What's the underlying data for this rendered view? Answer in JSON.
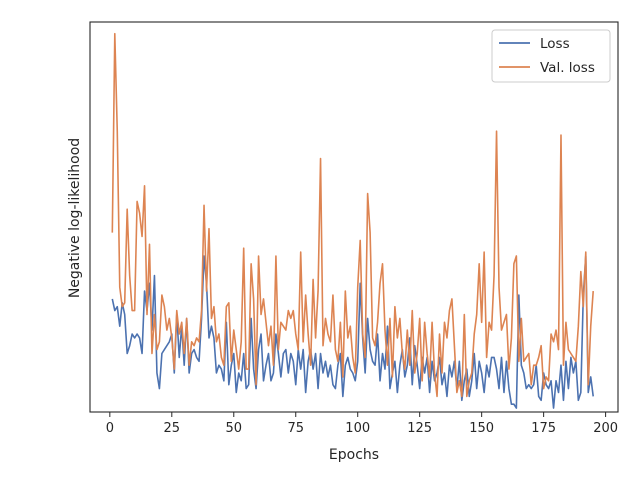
{
  "chart_data": {
    "type": "line",
    "xlabel": "Epochs",
    "ylabel": "Negative log-likelihood",
    "xlim": [
      -8,
      205
    ],
    "ylim": [
      0,
      100
    ],
    "xticks": [
      0,
      25,
      50,
      75,
      100,
      125,
      150,
      175,
      200
    ],
    "y_tick_labels_shown": false,
    "grid": false,
    "legend": {
      "placement": "top-right"
    },
    "x": [
      1,
      2,
      3,
      4,
      5,
      6,
      7,
      8,
      9,
      10,
      11,
      12,
      13,
      14,
      15,
      16,
      17,
      18,
      19,
      20,
      21,
      22,
      23,
      24,
      25,
      26,
      27,
      28,
      29,
      30,
      31,
      32,
      33,
      34,
      35,
      36,
      37,
      38,
      39,
      40,
      41,
      42,
      43,
      44,
      45,
      46,
      47,
      48,
      49,
      50,
      51,
      52,
      53,
      54,
      55,
      56,
      57,
      58,
      59,
      60,
      61,
      62,
      63,
      64,
      65,
      66,
      67,
      68,
      69,
      70,
      71,
      72,
      73,
      74,
      75,
      76,
      77,
      78,
      79,
      80,
      81,
      82,
      83,
      84,
      85,
      86,
      87,
      88,
      89,
      90,
      91,
      92,
      93,
      94,
      95,
      96,
      97,
      98,
      99,
      100,
      101,
      102,
      103,
      104,
      105,
      106,
      107,
      108,
      109,
      110,
      111,
      112,
      113,
      114,
      115,
      116,
      117,
      118,
      119,
      120,
      121,
      122,
      123,
      124,
      125,
      126,
      127,
      128,
      129,
      130,
      131,
      132,
      133,
      134,
      135,
      136,
      137,
      138,
      139,
      140,
      141,
      142,
      143,
      144,
      145,
      146,
      147,
      148,
      149,
      150,
      151,
      152,
      153,
      154,
      155,
      156,
      157,
      158,
      159,
      160,
      161,
      162,
      163,
      164,
      165,
      166,
      167,
      168,
      169,
      170,
      171,
      172,
      173,
      174,
      175,
      176,
      177,
      178,
      179,
      180,
      181,
      182,
      183,
      184,
      185,
      186,
      187,
      188,
      189,
      190,
      191,
      192,
      193,
      194,
      195
    ],
    "series": [
      {
        "name": "Loss",
        "color": "#4c72b0",
        "values": [
          29,
          26,
          27,
          22,
          28,
          25,
          15,
          17,
          20,
          19,
          20,
          19,
          15,
          31,
          26,
          33,
          21,
          35,
          10,
          6,
          15,
          16,
          17,
          18,
          20,
          10,
          25,
          14,
          22,
          12,
          24,
          10,
          15,
          16,
          14,
          13,
          24,
          40,
          33,
          19,
          22,
          19,
          10,
          12,
          11,
          8,
          23,
          7,
          12,
          15,
          5,
          10,
          8,
          15,
          6,
          7,
          24,
          11,
          6,
          16,
          20,
          8,
          12,
          15,
          8,
          10,
          20,
          15,
          9,
          15,
          16,
          10,
          15,
          13,
          7,
          16,
          11,
          16,
          5,
          13,
          16,
          11,
          15,
          6,
          15,
          10,
          13,
          9,
          12,
          7,
          6,
          12,
          15,
          4,
          12,
          14,
          11,
          10,
          8,
          13,
          33,
          19,
          10,
          24,
          16,
          13,
          12,
          20,
          8,
          15,
          11,
          22,
          6,
          10,
          13,
          5,
          12,
          16,
          9,
          12,
          19,
          7,
          17,
          12,
          6,
          14,
          10,
          14,
          5,
          13,
          8,
          10,
          14,
          7,
          10,
          4,
          12,
          9,
          13,
          6,
          13,
          3,
          8,
          11,
          4,
          8,
          15,
          6,
          13,
          10,
          5,
          12,
          9,
          14,
          14,
          11,
          6,
          14,
          5,
          13,
          6,
          2,
          2,
          1,
          30,
          12,
          10,
          6,
          7,
          6,
          7,
          12,
          4,
          3,
          10,
          7,
          6,
          8,
          1,
          8,
          5,
          12,
          3,
          13,
          6,
          14,
          10,
          13,
          3,
          5,
          30,
          40,
          5,
          9,
          4
        ],
        "values_note": null
      },
      {
        "name": "Val. loss",
        "color": "#dd8452",
        "values": [
          46,
          97,
          72,
          32,
          27,
          28,
          52,
          35,
          26,
          26,
          54,
          51,
          45,
          58,
          25,
          43,
          15,
          25,
          16,
          18,
          30,
          27,
          21,
          24,
          19,
          11,
          26,
          20,
          23,
          15,
          24,
          12,
          18,
          17,
          19,
          18,
          26,
          53,
          31,
          47,
          24,
          27,
          18,
          20,
          14,
          12,
          27,
          28,
          13,
          21,
          16,
          11,
          18,
          42,
          11,
          11,
          38,
          29,
          7,
          40,
          25,
          29,
          23,
          17,
          22,
          12,
          40,
          16,
          23,
          22,
          21,
          26,
          24,
          26,
          20,
          16,
          41,
          18,
          30,
          20,
          12,
          34,
          19,
          31,
          65,
          17,
          24,
          20,
          18,
          30,
          16,
          13,
          23,
          9,
          31,
          19,
          22,
          14,
          10,
          32,
          44,
          20,
          14,
          56,
          46,
          19,
          17,
          23,
          33,
          38,
          21,
          12,
          24,
          9,
          27,
          19,
          24,
          15,
          11,
          21,
          12,
          26,
          10,
          15,
          24,
          8,
          23,
          15,
          9,
          23,
          10,
          4,
          20,
          10,
          23,
          19,
          26,
          29,
          17,
          5,
          8,
          4,
          25,
          4,
          8,
          10,
          20,
          25,
          38,
          23,
          41,
          14,
          23,
          21,
          35,
          72,
          32,
          21,
          23,
          25,
          11,
          19,
          38,
          40,
          13,
          24,
          13,
          14,
          15,
          7,
          12,
          12,
          14,
          17,
          6,
          9,
          8,
          20,
          18,
          21,
          16,
          71,
          12,
          23,
          16,
          15,
          14,
          13,
          22,
          36,
          27,
          41,
          7,
          22,
          31
        ]
      }
    ]
  }
}
